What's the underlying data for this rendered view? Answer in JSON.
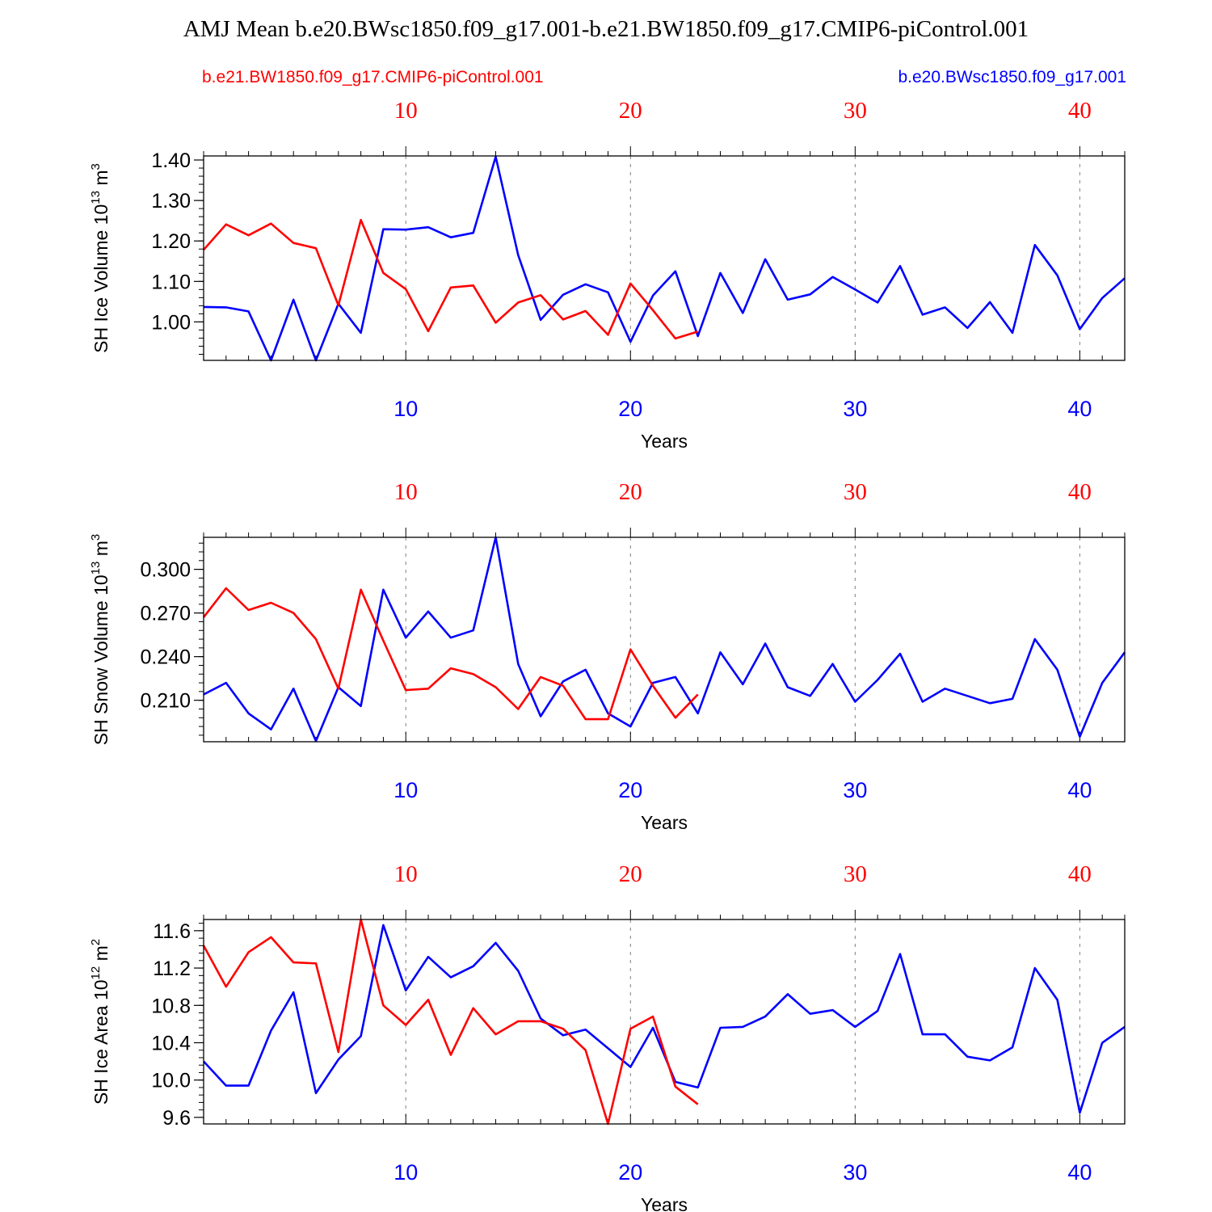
{
  "title": "AMJ Mean b.e20.BWsc1850.f09_g17.001-b.e21.BW1850.f09_g17.CMIP6-piControl.001",
  "colors": {
    "red": "#ff0000",
    "blue": "#0000ff",
    "axis": "#000000",
    "grid": "#808080"
  },
  "legend": {
    "red_label": "b.e21.BW1850.f09_g17.CMIP6-piControl.001",
    "blue_label": "b.e20.BWsc1850.f09_g17.001"
  },
  "chart_data": [
    {
      "type": "line",
      "ylabel_main": "SH Ice Volume 10",
      "ylabel_exp": "13",
      "ylabel_unit": " m",
      "ylabel_unit_exp": "3",
      "xlabel": "Years",
      "xlim": [
        1,
        42
      ],
      "ylim": [
        0.905,
        1.41
      ],
      "xticks": [
        10,
        20,
        30,
        40
      ],
      "xtick_labels": [
        "10",
        "20",
        "30",
        "40"
      ],
      "yticks": [
        1.0,
        1.1,
        1.2,
        1.3,
        1.4
      ],
      "ytick_labels": [
        "1.00",
        "1.10",
        "1.20",
        "1.30",
        "1.40"
      ],
      "yminor_step": 0.02,
      "series": [
        {
          "name": "b.e20.BWsc1850.f09_g17.001",
          "color": "blue",
          "start_year": 1,
          "values": [
            1.037,
            1.036,
            1.026,
            0.905,
            1.055,
            0.905,
            1.045,
            0.973,
            1.229,
            1.228,
            1.234,
            1.209,
            1.22,
            1.408,
            1.165,
            1.005,
            1.067,
            1.093,
            1.073,
            0.951,
            1.065,
            1.125,
            0.965,
            1.121,
            1.022,
            1.155,
            1.055,
            1.068,
            1.111,
            1.08,
            1.048,
            1.138,
            1.018,
            1.036,
            0.985,
            1.049,
            0.973,
            1.19,
            1.115,
            0.982,
            1.059,
            1.108
          ]
        },
        {
          "name": "b.e21.BW1850.f09_g17.CMIP6-piControl.001",
          "color": "red",
          "start_year": 1,
          "values": [
            1.178,
            1.241,
            1.214,
            1.243,
            1.195,
            1.182,
            1.041,
            1.252,
            1.121,
            1.081,
            0.977,
            1.085,
            1.09,
            0.998,
            1.048,
            1.066,
            1.006,
            1.027,
            0.968,
            1.095,
            1.029,
            0.959,
            0.976
          ]
        }
      ]
    },
    {
      "type": "line",
      "ylabel_main": "SH Snow Volume 10",
      "ylabel_exp": "13",
      "ylabel_unit": " m",
      "ylabel_unit_exp": "3",
      "xlabel": "Years",
      "xlim": [
        1,
        42
      ],
      "ylim": [
        0.1815,
        0.322
      ],
      "xticks": [
        10,
        20,
        30,
        40
      ],
      "xtick_labels": [
        "10",
        "20",
        "30",
        "40"
      ],
      "yticks": [
        0.21,
        0.24,
        0.27,
        0.3
      ],
      "ytick_labels": [
        "0.210",
        "0.240",
        "0.270",
        "0.300"
      ],
      "yminor_step": 0.006,
      "series": [
        {
          "name": "b.e20.BWsc1850.f09_g17.001",
          "color": "blue",
          "start_year": 1,
          "values": [
            0.214,
            0.222,
            0.201,
            0.19,
            0.218,
            0.182,
            0.219,
            0.206,
            0.286,
            0.253,
            0.271,
            0.253,
            0.258,
            0.322,
            0.235,
            0.199,
            0.223,
            0.231,
            0.201,
            0.192,
            0.222,
            0.226,
            0.201,
            0.243,
            0.221,
            0.249,
            0.219,
            0.213,
            0.235,
            0.209,
            0.224,
            0.242,
            0.209,
            0.218,
            0.213,
            0.208,
            0.211,
            0.252,
            0.231,
            0.185,
            0.222,
            0.243
          ]
        },
        {
          "name": "b.e21.BW1850.f09_g17.CMIP6-piControl.001",
          "color": "red",
          "start_year": 1,
          "values": [
            0.267,
            0.287,
            0.272,
            0.277,
            0.27,
            0.252,
            0.218,
            0.286,
            0.251,
            0.217,
            0.218,
            0.232,
            0.228,
            0.219,
            0.204,
            0.226,
            0.22,
            0.197,
            0.197,
            0.245,
            0.22,
            0.198,
            0.214
          ]
        }
      ]
    },
    {
      "type": "line",
      "ylabel_main": "SH Ice Area 10",
      "ylabel_exp": "12",
      "ylabel_unit": " m",
      "ylabel_unit_exp": "2",
      "xlabel": "Years",
      "xlim": [
        1,
        42
      ],
      "ylim": [
        9.53,
        11.72
      ],
      "xticks": [
        10,
        20,
        30,
        40
      ],
      "xtick_labels": [
        "10",
        "20",
        "30",
        "40"
      ],
      "yticks": [
        9.6,
        10.0,
        10.4,
        10.8,
        11.2,
        11.6
      ],
      "ytick_labels": [
        "9.6",
        "10.0",
        "10.4",
        "10.8",
        "11.2",
        "11.6"
      ],
      "yminor_step": 0.08,
      "series": [
        {
          "name": "b.e20.BWsc1850.f09_g17.001",
          "color": "blue",
          "start_year": 1,
          "values": [
            10.2,
            9.94,
            9.94,
            10.53,
            10.94,
            9.86,
            10.22,
            10.47,
            11.66,
            10.96,
            11.32,
            11.1,
            11.22,
            11.47,
            11.17,
            10.66,
            10.48,
            10.54,
            10.34,
            10.14,
            10.56,
            9.98,
            9.92,
            10.56,
            10.57,
            10.68,
            10.92,
            10.71,
            10.75,
            10.57,
            10.74,
            11.35,
            10.49,
            10.49,
            10.25,
            10.21,
            10.35,
            11.2,
            10.86,
            9.65,
            10.4,
            10.57
          ]
        },
        {
          "name": "b.e21.BW1850.f09_g17.CMIP6-piControl.001",
          "color": "red",
          "start_year": 1,
          "values": [
            11.44,
            11.0,
            11.37,
            11.53,
            11.26,
            11.25,
            10.3,
            11.72,
            10.8,
            10.59,
            10.86,
            10.27,
            10.77,
            10.49,
            10.63,
            10.63,
            10.55,
            10.32,
            9.53,
            10.55,
            10.68,
            9.93,
            9.74
          ]
        }
      ]
    }
  ]
}
